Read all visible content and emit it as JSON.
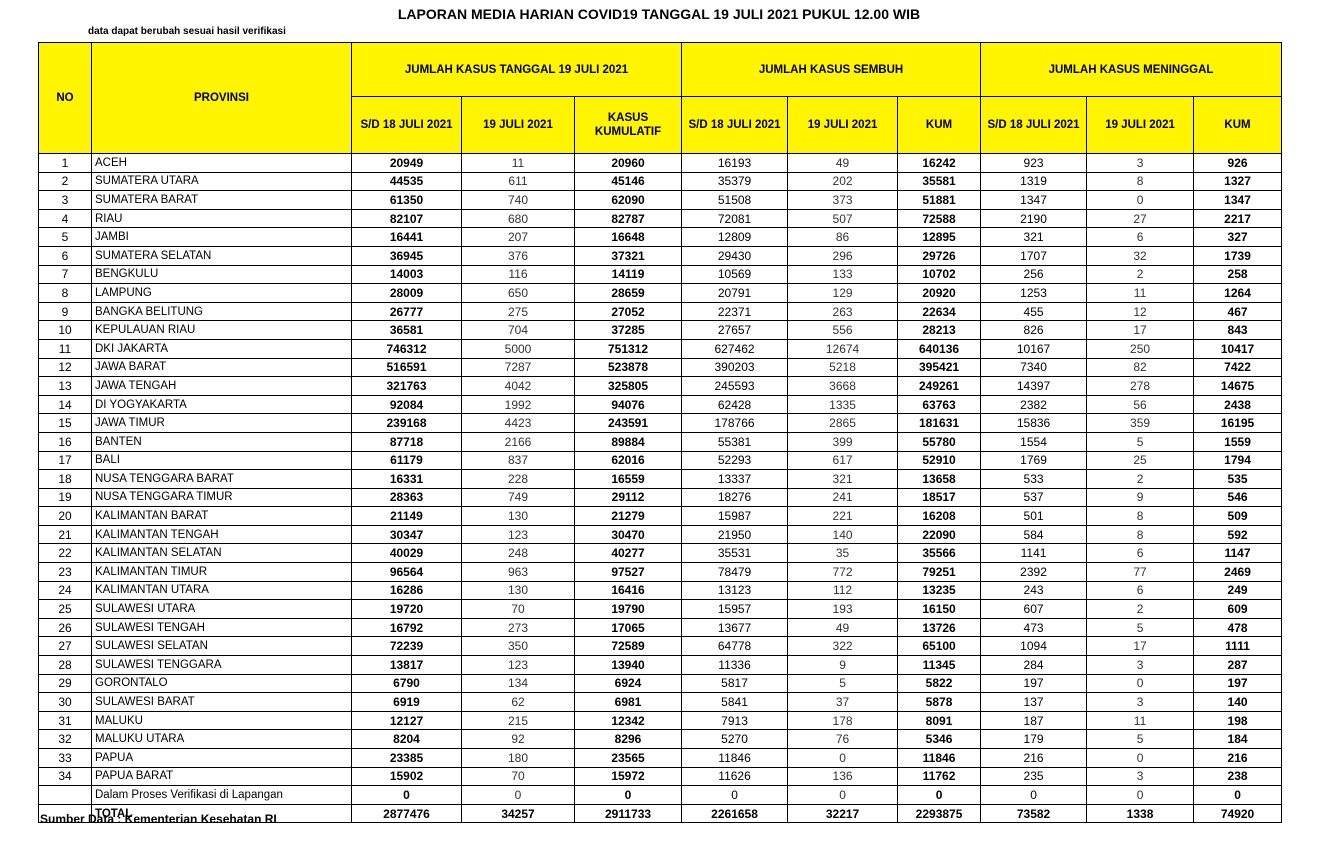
{
  "title": "LAPORAN MEDIA HARIAN COVID19 TANGGAL 19 JULI 2021 PUKUL 12.00 WIB",
  "note": "data dapat berubah sesuai hasil verifikasi",
  "headers": {
    "no": "NO",
    "provinsi": "PROVINSI",
    "group_kasus": "JUMLAH KASUS TANGGAL 19 JULI 2021",
    "group_sembuh": "JUMLAH KASUS SEMBUH",
    "group_meninggal": "JUMLAH KASUS MENINGGAL",
    "sub": [
      "S/D 18 JULI 2021",
      "19 JULI 2021",
      "KASUS KUMULATIF",
      "S/D 18 JULI 2021",
      "19 JULI 2021",
      "KUM",
      "S/D 18 JULI 2021",
      "19 JULI 2021",
      "KUM"
    ]
  },
  "rows": [
    [
      "1",
      "ACEH",
      "20949",
      "11",
      "20960",
      "16193",
      "49",
      "16242",
      "923",
      "3",
      "926"
    ],
    [
      "2",
      "SUMATERA UTARA",
      "44535",
      "611",
      "45146",
      "35379",
      "202",
      "35581",
      "1319",
      "8",
      "1327"
    ],
    [
      "3",
      "SUMATERA BARAT",
      "61350",
      "740",
      "62090",
      "51508",
      "373",
      "51881",
      "1347",
      "0",
      "1347"
    ],
    [
      "4",
      "RIAU",
      "82107",
      "680",
      "82787",
      "72081",
      "507",
      "72588",
      "2190",
      "27",
      "2217"
    ],
    [
      "5",
      "JAMBI",
      "16441",
      "207",
      "16648",
      "12809",
      "86",
      "12895",
      "321",
      "6",
      "327"
    ],
    [
      "6",
      "SUMATERA SELATAN",
      "36945",
      "376",
      "37321",
      "29430",
      "296",
      "29726",
      "1707",
      "32",
      "1739"
    ],
    [
      "7",
      "BENGKULU",
      "14003",
      "116",
      "14119",
      "10569",
      "133",
      "10702",
      "256",
      "2",
      "258"
    ],
    [
      "8",
      "LAMPUNG",
      "28009",
      "650",
      "28659",
      "20791",
      "129",
      "20920",
      "1253",
      "11",
      "1264"
    ],
    [
      "9",
      "BANGKA BELITUNG",
      "26777",
      "275",
      "27052",
      "22371",
      "263",
      "22634",
      "455",
      "12",
      "467"
    ],
    [
      "10",
      "KEPULAUAN RIAU",
      "36581",
      "704",
      "37285",
      "27657",
      "556",
      "28213",
      "826",
      "17",
      "843"
    ],
    [
      "11",
      "DKI JAKARTA",
      "746312",
      "5000",
      "751312",
      "627462",
      "12674",
      "640136",
      "10167",
      "250",
      "10417"
    ],
    [
      "12",
      "JAWA BARAT",
      "516591",
      "7287",
      "523878",
      "390203",
      "5218",
      "395421",
      "7340",
      "82",
      "7422"
    ],
    [
      "13",
      "JAWA TENGAH",
      "321763",
      "4042",
      "325805",
      "245593",
      "3668",
      "249261",
      "14397",
      "278",
      "14675"
    ],
    [
      "14",
      "DI YOGYAKARTA",
      "92084",
      "1992",
      "94076",
      "62428",
      "1335",
      "63763",
      "2382",
      "56",
      "2438"
    ],
    [
      "15",
      "JAWA TIMUR",
      "239168",
      "4423",
      "243591",
      "178766",
      "2865",
      "181631",
      "15836",
      "359",
      "16195"
    ],
    [
      "16",
      "BANTEN",
      "87718",
      "2166",
      "89884",
      "55381",
      "399",
      "55780",
      "1554",
      "5",
      "1559"
    ],
    [
      "17",
      "BALI",
      "61179",
      "837",
      "62016",
      "52293",
      "617",
      "52910",
      "1769",
      "25",
      "1794"
    ],
    [
      "18",
      "NUSA TENGGARA BARAT",
      "16331",
      "228",
      "16559",
      "13337",
      "321",
      "13658",
      "533",
      "2",
      "535"
    ],
    [
      "19",
      "NUSA TENGGARA TIMUR",
      "28363",
      "749",
      "29112",
      "18276",
      "241",
      "18517",
      "537",
      "9",
      "546"
    ],
    [
      "20",
      "KALIMANTAN BARAT",
      "21149",
      "130",
      "21279",
      "15987",
      "221",
      "16208",
      "501",
      "8",
      "509"
    ],
    [
      "21",
      "KALIMANTAN TENGAH",
      "30347",
      "123",
      "30470",
      "21950",
      "140",
      "22090",
      "584",
      "8",
      "592"
    ],
    [
      "22",
      "KALIMANTAN SELATAN",
      "40029",
      "248",
      "40277",
      "35531",
      "35",
      "35566",
      "1141",
      "6",
      "1147"
    ],
    [
      "23",
      "KALIMANTAN TIMUR",
      "96564",
      "963",
      "97527",
      "78479",
      "772",
      "79251",
      "2392",
      "77",
      "2469"
    ],
    [
      "24",
      "KALIMANTAN UTARA",
      "16286",
      "130",
      "16416",
      "13123",
      "112",
      "13235",
      "243",
      "6",
      "249"
    ],
    [
      "25",
      "SULAWESI UTARA",
      "19720",
      "70",
      "19790",
      "15957",
      "193",
      "16150",
      "607",
      "2",
      "609"
    ],
    [
      "26",
      "SULAWESI TENGAH",
      "16792",
      "273",
      "17065",
      "13677",
      "49",
      "13726",
      "473",
      "5",
      "478"
    ],
    [
      "27",
      "SULAWESI SELATAN",
      "72239",
      "350",
      "72589",
      "64778",
      "322",
      "65100",
      "1094",
      "17",
      "1111"
    ],
    [
      "28",
      "SULAWESI TENGGARA",
      "13817",
      "123",
      "13940",
      "11336",
      "9",
      "11345",
      "284",
      "3",
      "287"
    ],
    [
      "29",
      "GORONTALO",
      "6790",
      "134",
      "6924",
      "5817",
      "5",
      "5822",
      "197",
      "0",
      "197"
    ],
    [
      "30",
      "SULAWESI BARAT",
      "6919",
      "62",
      "6981",
      "5841",
      "37",
      "5878",
      "137",
      "3",
      "140"
    ],
    [
      "31",
      "MALUKU",
      "12127",
      "215",
      "12342",
      "7913",
      "178",
      "8091",
      "187",
      "11",
      "198"
    ],
    [
      "32",
      "MALUKU UTARA",
      "8204",
      "92",
      "8296",
      "5270",
      "76",
      "5346",
      "179",
      "5",
      "184"
    ],
    [
      "33",
      "PAPUA",
      "23385",
      "180",
      "23565",
      "11846",
      "0",
      "11846",
      "216",
      "0",
      "216"
    ],
    [
      "34",
      "PAPUA BARAT",
      "15902",
      "70",
      "15972",
      "11626",
      "136",
      "11762",
      "235",
      "3",
      "238"
    ],
    [
      "",
      "Dalam Proses Verifikasi di Lapangan",
      "0",
      "0",
      "0",
      "0",
      "0",
      "0",
      "0",
      "0",
      "0"
    ]
  ],
  "total": [
    "",
    "TOTAL",
    "2877476",
    "34257",
    "2911733",
    "2261658",
    "32217",
    "2293875",
    "73582",
    "1338",
    "74920"
  ],
  "source": "Sumber Data : Kementerian Kesehatan RI"
}
